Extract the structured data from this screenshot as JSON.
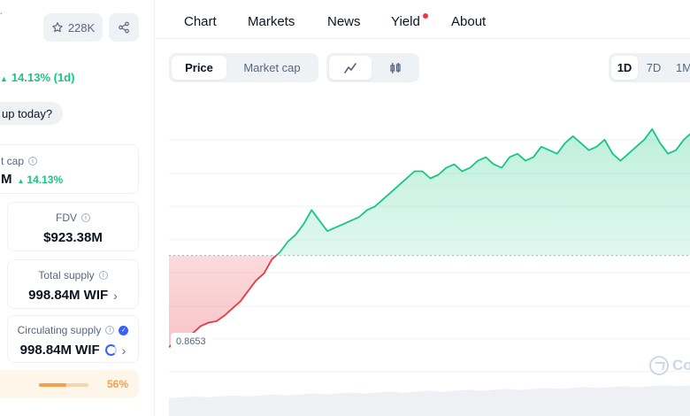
{
  "header": {
    "watchlist_count": "228K"
  },
  "price_change": {
    "text": "14.13% (1d)",
    "direction": "up"
  },
  "sentiment_prompt": "up today?",
  "stats": {
    "market_cap": {
      "label": "t cap",
      "value": "M",
      "change": "14.13%"
    },
    "fdv": {
      "label": "FDV",
      "value": "$923.38M"
    },
    "total_supply": {
      "label": "Total supply",
      "value": "998.84M WIF"
    },
    "circulating_supply": {
      "label": "Circulating supply",
      "value": "998.84M WIF",
      "percent_label": "56%",
      "percent_value": 56
    }
  },
  "nav": {
    "tabs": [
      {
        "label": "Chart"
      },
      {
        "label": "Markets"
      },
      {
        "label": "News"
      },
      {
        "label": "Yield",
        "has_notification": true
      },
      {
        "label": "About"
      }
    ]
  },
  "chart_controls": {
    "metric_tabs": [
      {
        "label": "Price",
        "active": true
      },
      {
        "label": "Market cap",
        "active": false
      }
    ],
    "chart_types": [
      {
        "icon": "line-chart-icon",
        "active": true
      },
      {
        "icon": "candlestick-icon",
        "active": false
      }
    ],
    "ranges": [
      {
        "label": "1D",
        "active": true
      },
      {
        "label": "7D",
        "active": false
      },
      {
        "label": "1M",
        "active": false
      }
    ]
  },
  "chart_data": {
    "type": "area",
    "baseline_label": "0.8653",
    "baseline_value": 0.8653,
    "colors": {
      "up": "#16c784",
      "down": "#ea3943",
      "grid": "#eff2f5"
    },
    "series": [
      {
        "values": [
          0.735,
          0.745,
          0.75,
          0.755,
          0.765,
          0.77,
          0.772,
          0.78,
          0.79,
          0.8,
          0.815,
          0.83,
          0.84,
          0.86,
          0.87,
          0.885,
          0.895,
          0.91,
          0.93,
          0.915,
          0.9,
          0.905,
          0.91,
          0.915,
          0.92,
          0.93,
          0.935,
          0.945,
          0.955,
          0.965,
          0.975,
          0.985,
          0.985,
          0.975,
          0.98,
          0.99,
          0.995,
          0.985,
          0.99,
          1.0,
          1.005,
          0.995,
          0.99,
          1.005,
          1.01,
          1.0,
          1.005,
          1.02,
          1.015,
          1.01,
          1.025,
          1.035,
          1.025,
          1.015,
          1.02,
          1.03,
          1.01,
          1.0,
          1.01,
          1.02,
          1.03,
          1.045,
          1.025,
          1.01,
          1.015,
          1.03,
          1.04
        ]
      }
    ],
    "volume_trend": "rising"
  },
  "watermark": {
    "text": "Co"
  }
}
